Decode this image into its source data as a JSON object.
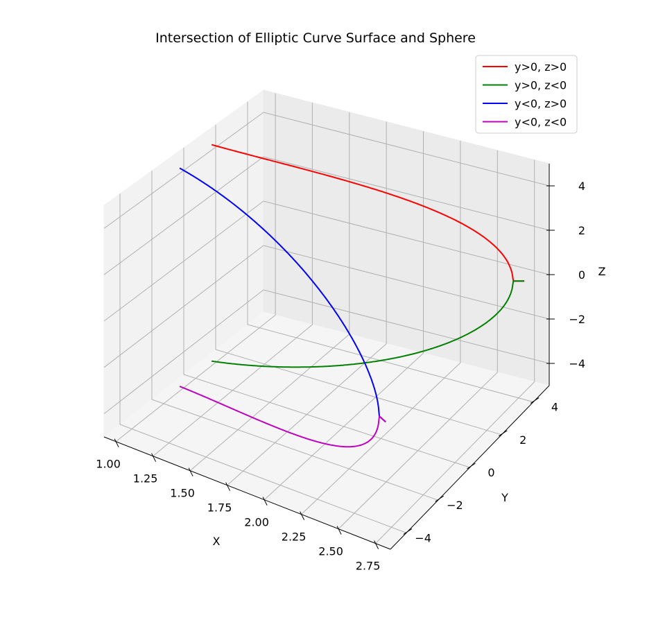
{
  "chart_data": {
    "type": "line",
    "projection": "3d",
    "title": "Intersection of Elliptic Curve Surface and Sphere",
    "xlabel": "X",
    "ylabel": "Y",
    "zlabel": "Z",
    "xlim": [
      0.92,
      2.85
    ],
    "ylim": [
      -5.0,
      5.0
    ],
    "zlim": [
      -5.0,
      5.0
    ],
    "grid": true,
    "legend_placement": "top-right",
    "x_ticks": [
      "1.00",
      "1.25",
      "1.50",
      "1.75",
      "2.00",
      "2.25",
      "2.50",
      "2.75"
    ],
    "y_ticks": [
      "−4",
      "−2",
      "0",
      "2",
      "4"
    ],
    "z_ticks": [
      "−4",
      "−2",
      "0",
      "2",
      "4"
    ],
    "curve_x_range": [
      1.0,
      2.75
    ],
    "series": [
      {
        "name": "y>0, z>0",
        "color": "#ff0000",
        "ysign": 1,
        "zsign": 1
      },
      {
        "name": "y>0, z<0",
        "color": "#008000",
        "ysign": 1,
        "zsign": -1
      },
      {
        "name": "y<0, z>0",
        "color": "#0000ff",
        "ysign": -1,
        "zsign": 1
      },
      {
        "name": "y<0, z<0",
        "color": "#bf00bf",
        "ysign": -1,
        "zsign": -1
      }
    ]
  }
}
